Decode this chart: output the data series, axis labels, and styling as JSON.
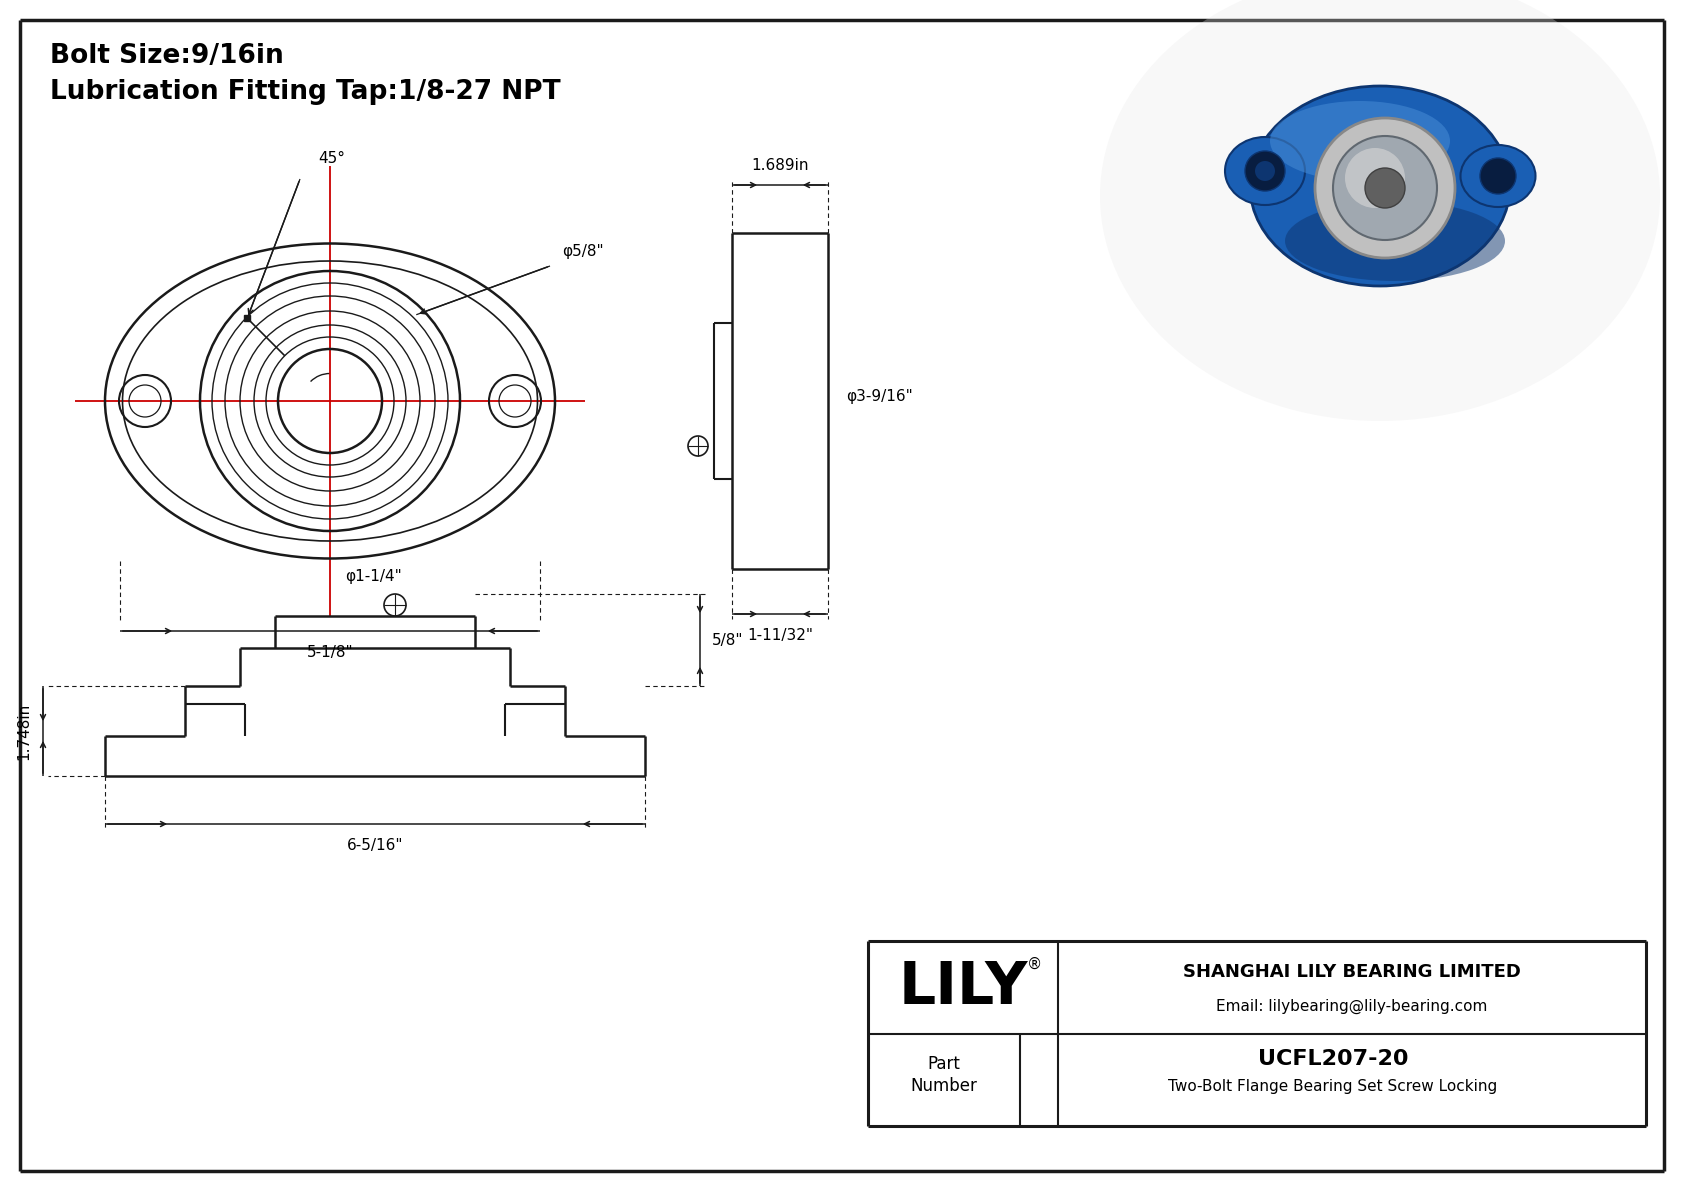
{
  "bolt_size": "Bolt Size:9/16in",
  "lub_tap": "Lubrication Fitting Tap:1/8-27 NPT",
  "part_number": "UCFL207-20",
  "part_desc": "Two-Bolt Flange Bearing Set Screw Locking",
  "company_name": "SHANGHAI LILY BEARING LIMITED",
  "company_email": "Email: lilybearing@lily-bearing.com",
  "logo_text": "LILY",
  "logo_reg": "®",
  "bg_color": "#ffffff",
  "line_color": "#1a1a1a",
  "red_color": "#cc0000",
  "angle_45": "45°",
  "dia_5_8_front": "φ5/8\"",
  "dia_1_1_4": "φ1-1/4\"",
  "dim_5_1_8": "5-1/8\"",
  "dim_1_689": "1.689in",
  "dia_3_9_16": "φ3-9/16\"",
  "dim_1_11_32": "1-11/32\"",
  "dim_1_748": "1.748in",
  "dim_5_8_side": "5/8\"",
  "dim_6_5_16": "6-5/16\""
}
